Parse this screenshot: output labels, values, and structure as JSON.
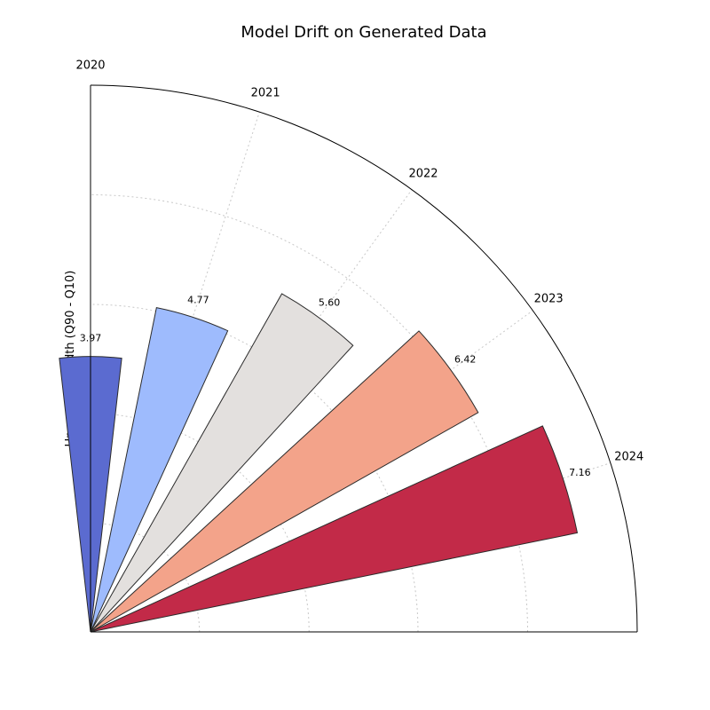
{
  "chart_data": {
    "type": "bar",
    "subtype": "polar-quarter",
    "title": "Model Drift on Generated Data",
    "ylabel": "Uncertainty Width (Q90 - Q10)",
    "categories": [
      "2020",
      "2021",
      "2022",
      "2023",
      "2024"
    ],
    "values": [
      3.97,
      4.77,
      5.6,
      6.42,
      7.16
    ],
    "value_labels": [
      "3.97",
      "4.77",
      "5.60",
      "6.42",
      "7.16"
    ],
    "angles_deg": [
      90,
      72,
      54,
      36,
      18
    ],
    "angle_range_deg": [
      0,
      90
    ],
    "bar_width_deg": 13,
    "rmax": 7.88,
    "r_gridlines": [
      1.57,
      3.15,
      4.72,
      6.3
    ],
    "theta_gridlines_deg": [
      18,
      36,
      54,
      72
    ],
    "colors": [
      "#5b6bd0",
      "#9ebbfd",
      "#e3e0de",
      "#f3a38a",
      "#c22a48"
    ],
    "grid": true,
    "legend": "none"
  }
}
